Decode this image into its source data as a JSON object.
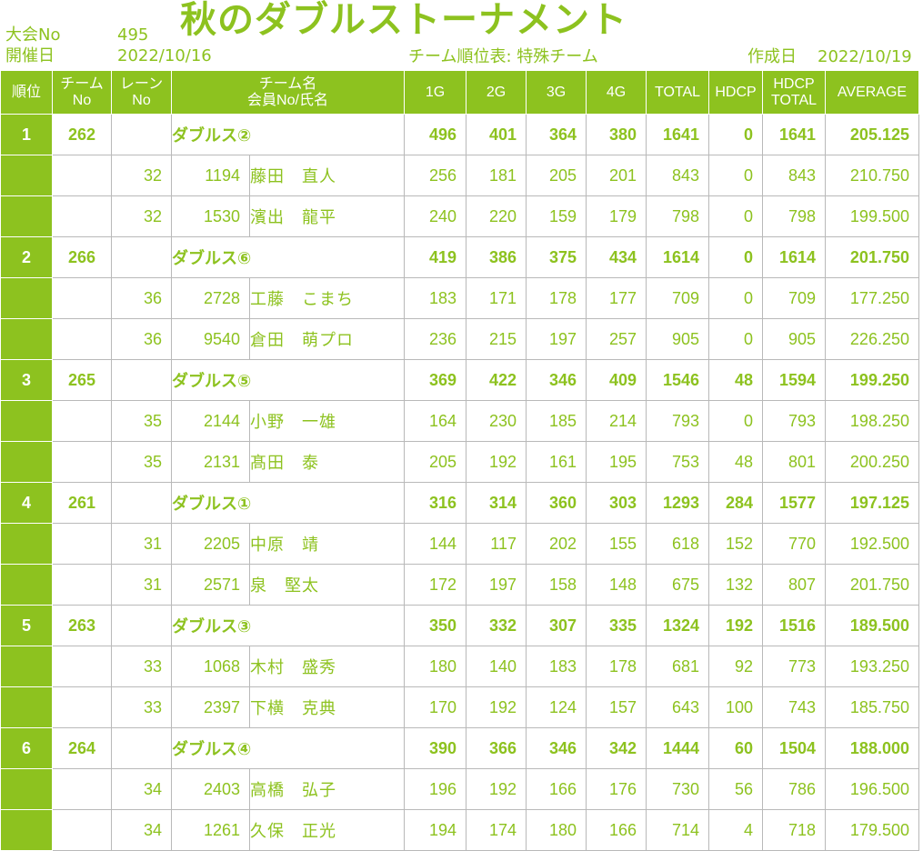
{
  "header": {
    "tournament_no_label": "大会No",
    "tournament_no": "495",
    "date_label": "開催日",
    "date": "2022/10/16",
    "title": "秋のダブルストーナメント",
    "report_label": "チーム順位表: 特殊チーム",
    "created_label": "作成日",
    "created_date": "2022/10/19"
  },
  "columns": {
    "rank": "順位",
    "team_no_1": "チーム",
    "team_no_2": "No",
    "lane_1": "レーン",
    "lane_2": "No",
    "team_name_1": "チーム名",
    "team_name_2": "会員No/氏名",
    "g1": "1G",
    "g2": "2G",
    "g3": "3G",
    "g4": "4G",
    "total": "TOTAL",
    "hdcp": "HDCP",
    "hdcp_total_1": "HDCP",
    "hdcp_total_2": "TOTAL",
    "average": "AVERAGE"
  },
  "teams": [
    {
      "rank": "1",
      "team_no": "262",
      "name": "ダブルス②",
      "g1": "496",
      "g2": "401",
      "g3": "364",
      "g4": "380",
      "total": "1641",
      "hdcp": "0",
      "hdcp_total": "1641",
      "average": "205.125",
      "members": [
        {
          "lane": "32",
          "member_no": "1194",
          "name": "藤田　直人",
          "g1": "256",
          "g2": "181",
          "g3": "205",
          "g4": "201",
          "total": "843",
          "hdcp": "0",
          "hdcp_total": "843",
          "average": "210.750"
        },
        {
          "lane": "32",
          "member_no": "1530",
          "name": "濱出　龍平",
          "g1": "240",
          "g2": "220",
          "g3": "159",
          "g4": "179",
          "total": "798",
          "hdcp": "0",
          "hdcp_total": "798",
          "average": "199.500"
        }
      ]
    },
    {
      "rank": "2",
      "team_no": "266",
      "name": "ダブルス⑥",
      "g1": "419",
      "g2": "386",
      "g3": "375",
      "g4": "434",
      "total": "1614",
      "hdcp": "0",
      "hdcp_total": "1614",
      "average": "201.750",
      "members": [
        {
          "lane": "36",
          "member_no": "2728",
          "name": "工藤　こまち",
          "g1": "183",
          "g2": "171",
          "g3": "178",
          "g4": "177",
          "total": "709",
          "hdcp": "0",
          "hdcp_total": "709",
          "average": "177.250"
        },
        {
          "lane": "36",
          "member_no": "9540",
          "name": "倉田　萌プロ",
          "g1": "236",
          "g2": "215",
          "g3": "197",
          "g4": "257",
          "total": "905",
          "hdcp": "0",
          "hdcp_total": "905",
          "average": "226.250"
        }
      ]
    },
    {
      "rank": "3",
      "team_no": "265",
      "name": "ダブルス⑤",
      "g1": "369",
      "g2": "422",
      "g3": "346",
      "g4": "409",
      "total": "1546",
      "hdcp": "48",
      "hdcp_total": "1594",
      "average": "199.250",
      "members": [
        {
          "lane": "35",
          "member_no": "2144",
          "name": "小野　一雄",
          "g1": "164",
          "g2": "230",
          "g3": "185",
          "g4": "214",
          "total": "793",
          "hdcp": "0",
          "hdcp_total": "793",
          "average": "198.250"
        },
        {
          "lane": "35",
          "member_no": "2131",
          "name": "髙田　泰",
          "g1": "205",
          "g2": "192",
          "g3": "161",
          "g4": "195",
          "total": "753",
          "hdcp": "48",
          "hdcp_total": "801",
          "average": "200.250"
        }
      ]
    },
    {
      "rank": "4",
      "team_no": "261",
      "name": "ダブルス①",
      "g1": "316",
      "g2": "314",
      "g3": "360",
      "g4": "303",
      "total": "1293",
      "hdcp": "284",
      "hdcp_total": "1577",
      "average": "197.125",
      "members": [
        {
          "lane": "31",
          "member_no": "2205",
          "name": "中原　靖",
          "g1": "144",
          "g2": "117",
          "g3": "202",
          "g4": "155",
          "total": "618",
          "hdcp": "152",
          "hdcp_total": "770",
          "average": "192.500"
        },
        {
          "lane": "31",
          "member_no": "2571",
          "name": "泉　堅太",
          "g1": "172",
          "g2": "197",
          "g3": "158",
          "g4": "148",
          "total": "675",
          "hdcp": "132",
          "hdcp_total": "807",
          "average": "201.750"
        }
      ]
    },
    {
      "rank": "5",
      "team_no": "263",
      "name": "ダブルス③",
      "g1": "350",
      "g2": "332",
      "g3": "307",
      "g4": "335",
      "total": "1324",
      "hdcp": "192",
      "hdcp_total": "1516",
      "average": "189.500",
      "members": [
        {
          "lane": "33",
          "member_no": "1068",
          "name": "木村　盛秀",
          "g1": "180",
          "g2": "140",
          "g3": "183",
          "g4": "178",
          "total": "681",
          "hdcp": "92",
          "hdcp_total": "773",
          "average": "193.250"
        },
        {
          "lane": "33",
          "member_no": "2397",
          "name": "下横　克典",
          "g1": "170",
          "g2": "192",
          "g3": "124",
          "g4": "157",
          "total": "643",
          "hdcp": "100",
          "hdcp_total": "743",
          "average": "185.750"
        }
      ]
    },
    {
      "rank": "6",
      "team_no": "264",
      "name": "ダブルス④",
      "g1": "390",
      "g2": "366",
      "g3": "346",
      "g4": "342",
      "total": "1444",
      "hdcp": "60",
      "hdcp_total": "1504",
      "average": "188.000",
      "members": [
        {
          "lane": "34",
          "member_no": "2403",
          "name": "高橋　弘子",
          "g1": "196",
          "g2": "192",
          "g3": "166",
          "g4": "176",
          "total": "730",
          "hdcp": "56",
          "hdcp_total": "786",
          "average": "196.500"
        },
        {
          "lane": "34",
          "member_no": "1261",
          "name": "久保　正光",
          "g1": "194",
          "g2": "174",
          "g3": "180",
          "g4": "166",
          "total": "714",
          "hdcp": "4",
          "hdcp_total": "718",
          "average": "179.500"
        }
      ]
    }
  ]
}
